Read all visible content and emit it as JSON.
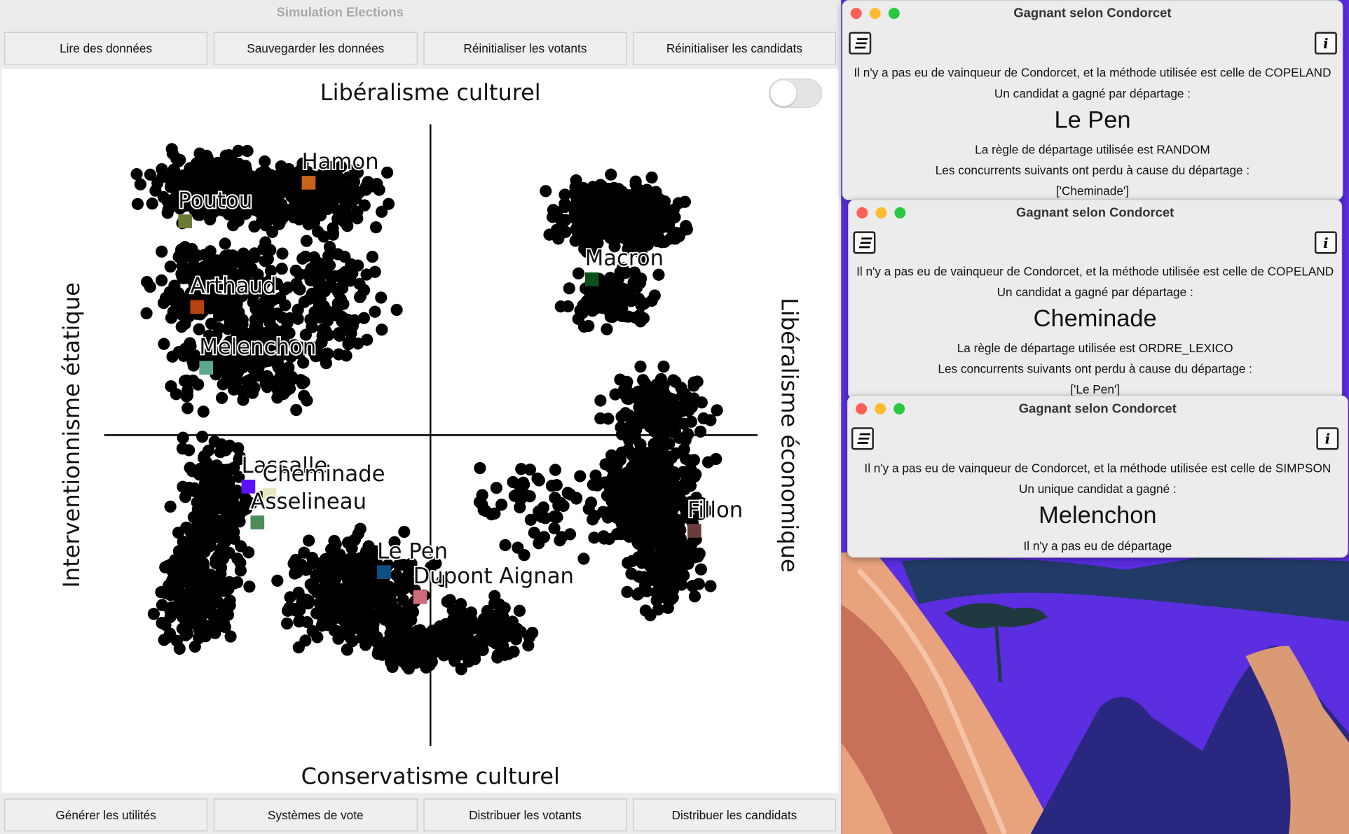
{
  "main_window": {
    "title": "Simulation Elections",
    "top_buttons": [
      "Lire des données",
      "Sauvegarder les données",
      "Réinitialiser les votants",
      "Réinitialiser les candidats"
    ],
    "bottom_buttons": [
      "Générer les utilités",
      "Systèmes de vote",
      "Distribuer les votants",
      "Distribuer les candidats"
    ],
    "toggle_state": "off"
  },
  "chart_data": {
    "type": "scatter",
    "axis_labels": {
      "top": "Libéralisme culturel",
      "bottom": "Conservatisme culturel",
      "left": "Interventionnisme étatique",
      "right": "Libéralisme économique"
    },
    "xlim": [
      -1,
      1
    ],
    "ylim": [
      -1,
      1
    ],
    "grid": false,
    "voter_clusters": [
      {
        "cx": -0.72,
        "cy": 0.85,
        "rx": 0.18,
        "ry": 0.1,
        "n": 260
      },
      {
        "cx": -0.42,
        "cy": 0.82,
        "rx": 0.2,
        "ry": 0.1,
        "n": 220
      },
      {
        "cx": -0.7,
        "cy": 0.5,
        "rx": 0.18,
        "ry": 0.14,
        "n": 200
      },
      {
        "cx": -0.6,
        "cy": 0.25,
        "rx": 0.22,
        "ry": 0.14,
        "n": 220
      },
      {
        "cx": -0.35,
        "cy": 0.45,
        "rx": 0.15,
        "ry": 0.22,
        "n": 120
      },
      {
        "cx": -0.72,
        "cy": -0.27,
        "rx": 0.1,
        "ry": 0.2,
        "n": 170
      },
      {
        "cx": -0.78,
        "cy": -0.6,
        "rx": 0.12,
        "ry": 0.18,
        "n": 210
      },
      {
        "cx": -0.25,
        "cy": -0.62,
        "rx": 0.18,
        "ry": 0.16,
        "n": 380
      },
      {
        "cx": -0.05,
        "cy": -0.8,
        "rx": 0.12,
        "ry": 0.08,
        "n": 130
      },
      {
        "cx": 0.17,
        "cy": -0.75,
        "rx": 0.12,
        "ry": 0.1,
        "n": 100
      },
      {
        "cx": 0.62,
        "cy": 0.75,
        "rx": 0.17,
        "ry": 0.1,
        "n": 430
      },
      {
        "cx": 0.6,
        "cy": 0.45,
        "rx": 0.12,
        "ry": 0.1,
        "n": 90
      },
      {
        "cx": 0.75,
        "cy": 0.07,
        "rx": 0.13,
        "ry": 0.1,
        "n": 140
      },
      {
        "cx": 0.72,
        "cy": -0.25,
        "rx": 0.15,
        "ry": 0.18,
        "n": 320
      },
      {
        "cx": 0.78,
        "cy": -0.5,
        "rx": 0.11,
        "ry": 0.15,
        "n": 160
      },
      {
        "cx": 0.35,
        "cy": -0.3,
        "rx": 0.2,
        "ry": 0.15,
        "n": 60
      }
    ],
    "candidates": [
      {
        "name": "Hamon",
        "x": -0.41,
        "y": 0.87,
        "color": "#c8621a"
      },
      {
        "name": "Poutou",
        "x": -0.82,
        "y": 0.73,
        "color": "#6a7a35"
      },
      {
        "name": "Arthaud",
        "x": -0.78,
        "y": 0.42,
        "color": "#b9420f"
      },
      {
        "name": "Melenchon",
        "x": -0.75,
        "y": 0.2,
        "color": "#5ea78c"
      },
      {
        "name": "Lassalle",
        "x": -0.61,
        "y": -0.23,
        "color": "#5b12ff"
      },
      {
        "name": "Cheminade",
        "x": -0.54,
        "y": -0.26,
        "color": "#e8e8c0"
      },
      {
        "name": "Asselineau",
        "x": -0.58,
        "y": -0.36,
        "color": "#4e8c5a"
      },
      {
        "name": "Le Pen",
        "x": -0.16,
        "y": -0.54,
        "color": "#0c4f86"
      },
      {
        "name": "Dupont Aignan",
        "x": -0.04,
        "y": -0.63,
        "color": "#d06b7c"
      },
      {
        "name": "Macron",
        "x": 0.53,
        "y": 0.52,
        "color": "#0c4f1c"
      },
      {
        "name": "Fillon",
        "x": 0.87,
        "y": -0.39,
        "color": "#6a3b3b"
      }
    ]
  },
  "dialogs": [
    {
      "title": "Gagnant selon Condorcet",
      "line1": "Il n'y a pas eu de vainqueur de Condorcet, et la méthode utilisée est celle de COPELAND",
      "line2": "Un candidat a gagné par départage :",
      "winner": "Le Pen",
      "line3": "La règle de départage utilisée est RANDOM",
      "line4": "Les concurrents suivants ont perdu à cause du départage :",
      "line5": "['Cheminade']"
    },
    {
      "title": "Gagnant selon Condorcet",
      "line1": "Il n'y a pas eu de vainqueur de Condorcet, et la méthode utilisée est celle de COPELAND",
      "line2": "Un candidat a gagné par départage :",
      "winner": "Cheminade",
      "line3": "La règle de départage utilisée est ORDRE_LEXICO",
      "line4": "Les concurrents suivants ont perdu à cause du départage :",
      "line5": "['Le Pen']"
    },
    {
      "title": "Gagnant selon Condorcet",
      "line1": "Il n'y a pas eu de vainqueur de Condorcet, et la méthode utilisée est celle de SIMPSON",
      "line2": "Un unique candidat a gagné :",
      "winner": "Melenchon",
      "line3": "Il n'y a pas eu de départage"
    }
  ],
  "icons": {
    "list": "list-icon",
    "info": "info-icon"
  }
}
